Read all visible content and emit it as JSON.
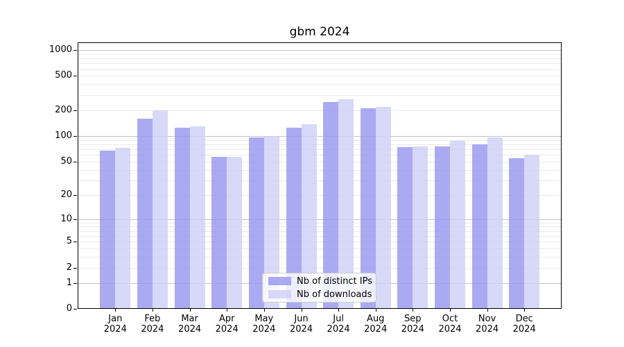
{
  "chart_data": {
    "type": "bar",
    "title": "gbm 2024",
    "categories": [
      "Jan 2024",
      "Feb 2024",
      "Mar 2024",
      "Apr 2024",
      "May 2024",
      "Jun 2024",
      "Jul 2024",
      "Aug 2024",
      "Sep 2024",
      "Oct 2024",
      "Nov 2024",
      "Dec 2024"
    ],
    "series": [
      {
        "name": "Nb of distinct IPs",
        "color": "#9595f0",
        "values": [
          67,
          159,
          126,
          57,
          96,
          125,
          247,
          212,
          74,
          76,
          79,
          55
        ]
      },
      {
        "name": "Nb of downloads",
        "color": "#cecef6",
        "values": [
          73,
          199,
          129,
          57,
          100,
          138,
          266,
          217,
          75,
          88,
          97,
          60
        ]
      }
    ],
    "y_scale": "log1p",
    "y_ticks": [
      0,
      1,
      2,
      5,
      10,
      20,
      50,
      100,
      200,
      500,
      1000
    ],
    "y_major_gridlines": [
      1,
      10,
      100,
      1000
    ],
    "ylim": [
      0,
      1230
    ],
    "xlabel": "",
    "ylabel": "",
    "grid": true,
    "legend_position": "lower center",
    "colors": {
      "grid_major": "#c3c3c3",
      "grid_minor": "#ebebeb",
      "spine": "#000000",
      "background": "#ffffff"
    }
  }
}
